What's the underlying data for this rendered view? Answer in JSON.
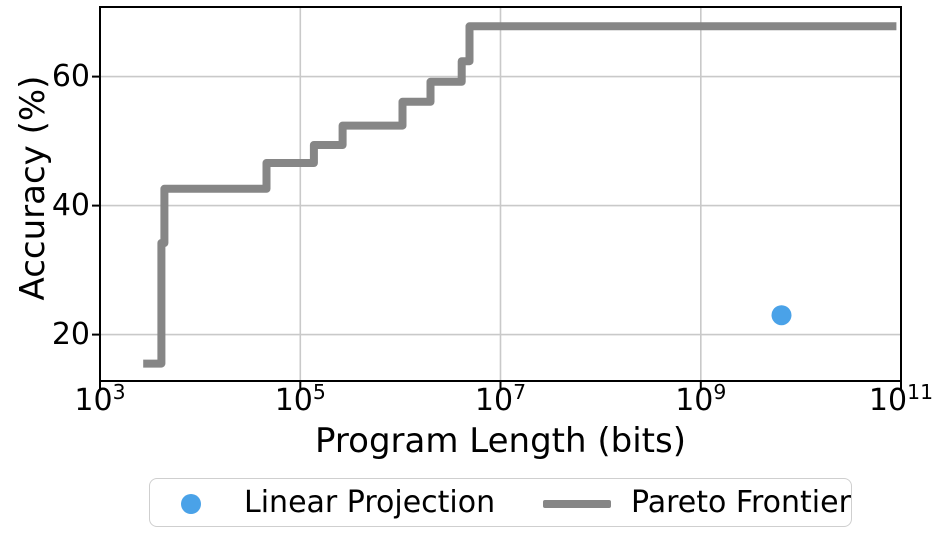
{
  "chart_data": {
    "type": "line",
    "title": "",
    "xlabel": "Program Length (bits)",
    "ylabel": "Accuracy (%)",
    "x_scale": "log10",
    "x_tick_base": "10",
    "x_ticks_exponents": [
      3,
      5,
      7,
      9,
      11
    ],
    "y_ticks": [
      20,
      40,
      60
    ],
    "xlim_exponents": [
      3,
      11
    ],
    "ylim": [
      12.8,
      70.8
    ],
    "grid": true,
    "colors": {
      "pareto_frontier": "#868686",
      "linear_projection": "#4aa2e8",
      "gridline": "#c9c9c9",
      "spine": "#000000"
    },
    "series": [
      {
        "name": "Pareto Frontier",
        "type": "step_line",
        "color_key": "pareto_frontier",
        "linewidth": 8,
        "points": [
          [
            2700,
            15.5
          ],
          [
            4100,
            15.5
          ],
          [
            4100,
            34.2
          ],
          [
            4400,
            34.2
          ],
          [
            4400,
            42.6
          ],
          [
            46000,
            42.6
          ],
          [
            46000,
            46.6
          ],
          [
            137000,
            46.6
          ],
          [
            137000,
            49.4
          ],
          [
            265000,
            49.4
          ],
          [
            265000,
            52.4
          ],
          [
            1050000,
            52.4
          ],
          [
            1050000,
            56.1
          ],
          [
            2000000,
            56.1
          ],
          [
            2000000,
            59.2
          ],
          [
            4100000,
            59.2
          ],
          [
            4100000,
            62.4
          ],
          [
            4900000,
            62.4
          ],
          [
            4900000,
            67.8
          ],
          [
            90000000000,
            67.8
          ]
        ]
      },
      {
        "name": "Linear Projection",
        "type": "scatter",
        "color_key": "linear_projection",
        "marker_diameter": 20,
        "points": [
          [
            6400000000,
            23.0
          ]
        ]
      }
    ],
    "legend": {
      "position": "below",
      "entries": [
        {
          "label": "Linear Projection",
          "marker": "circle",
          "color_key": "linear_projection"
        },
        {
          "label": "Pareto Frontier",
          "marker": "line",
          "color_key": "pareto_frontier"
        }
      ]
    }
  }
}
